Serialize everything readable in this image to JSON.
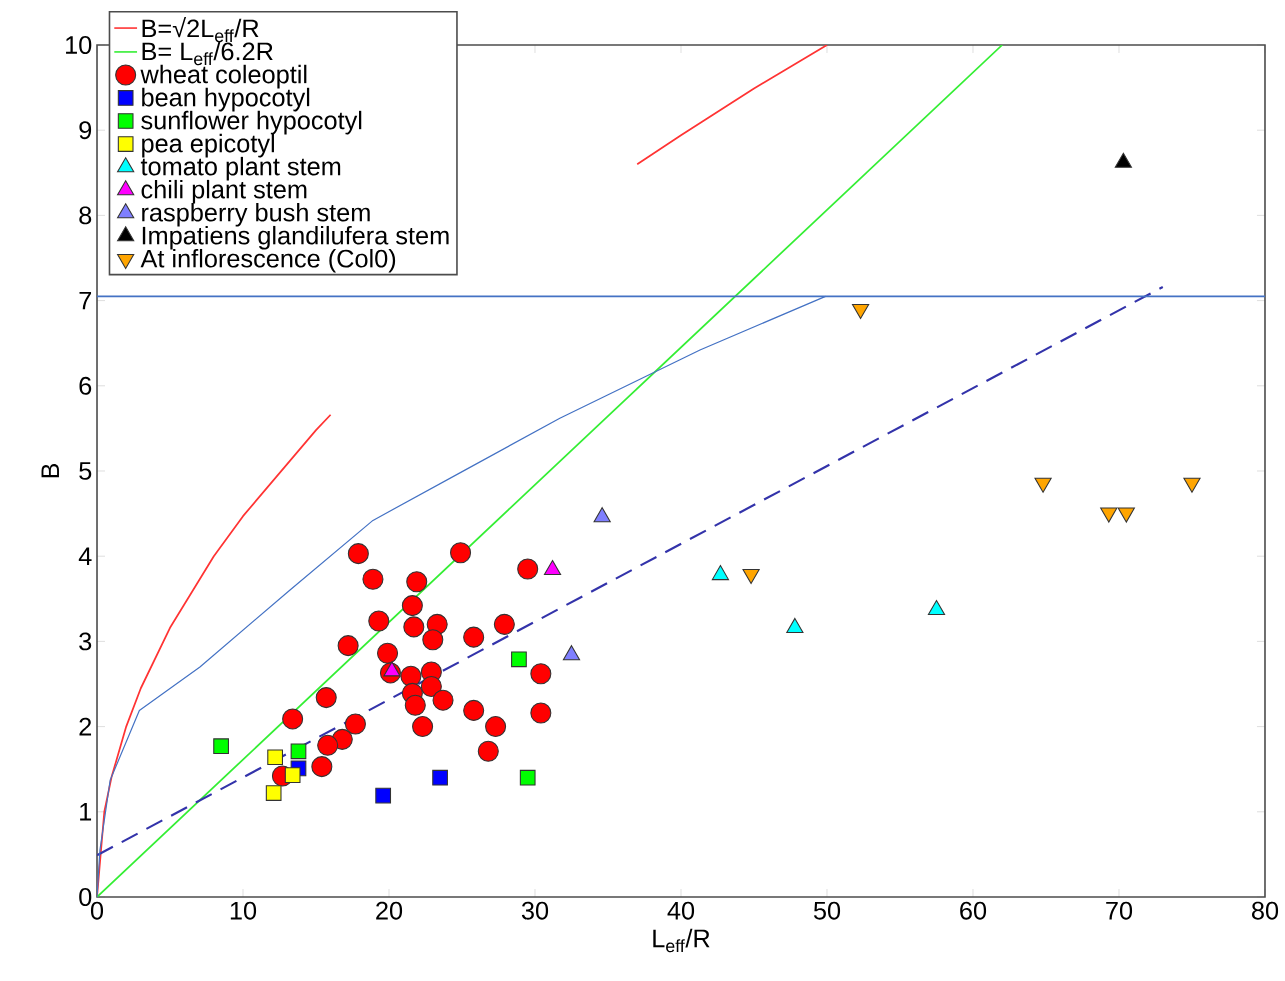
{
  "chart_data": {
    "type": "scatter",
    "xlabel": "L$_{eff}$/R",
    "ylabel": "B",
    "xlim": [
      0,
      80
    ],
    "ylim": [
      0,
      10
    ],
    "xticks": [
      0,
      10,
      20,
      30,
      40,
      50,
      60,
      70,
      80
    ],
    "yticks": [
      0,
      1,
      2,
      3,
      4,
      5,
      6,
      7,
      8,
      9,
      10
    ],
    "grid": false,
    "legend": "top left",
    "ref_lines": [
      {
        "axis": "y",
        "value": 7.05,
        "color": "#4472c4",
        "line_style": "solid"
      }
    ],
    "series": [
      {
        "name": "B=√2L$_{eff}$/R",
        "type": "line",
        "color": "#ff3333",
        "marker": "none",
        "line_style": "solid",
        "x": [
          0,
          0.5,
          1,
          2,
          3,
          5,
          8,
          10,
          15,
          16,
          20,
          25,
          30,
          35,
          37,
          40,
          45,
          50
        ],
        "values": [
          0,
          1,
          1.41,
          2,
          2.45,
          3.16,
          4,
          4.47,
          5.48,
          5.66,
          null,
          null,
          null,
          null,
          8.6,
          8.94,
          9.49,
          10
        ]
      },
      {
        "name": "B= L$_{eff}$/6.2R",
        "type": "line",
        "color": "#33ee33",
        "marker": "none",
        "line_style": "solid",
        "x": [
          0,
          62
        ],
        "values": [
          0,
          10
        ]
      },
      {
        "name": "wheat coleoptil",
        "color": "#ff0000",
        "marker": "circle",
        "x": [
          17.9,
          24.9,
          29.5,
          18.9,
          21.9,
          21.6,
          19.3,
          21.7,
          23.3,
          23.0,
          25.8,
          27.9,
          17.2,
          19.9,
          30.4,
          21.5,
          22.9,
          22.9,
          21.6,
          23.7,
          21.8,
          15.7,
          25.8,
          30.4,
          13.4,
          17.7,
          22.3,
          27.3,
          16.8,
          15.8,
          26.8,
          15.4,
          12.7,
          20.1
        ],
        "values": [
          4.03,
          4.04,
          3.85,
          3.73,
          3.7,
          3.42,
          3.24,
          3.17,
          3.2,
          3.02,
          3.05,
          3.2,
          2.95,
          2.86,
          2.62,
          2.59,
          2.64,
          2.47,
          2.39,
          2.31,
          2.25,
          2.34,
          2.19,
          2.16,
          2.09,
          2.03,
          2.0,
          2.0,
          1.85,
          1.78,
          1.71,
          1.53,
          1.42,
          2.63
        ]
      },
      {
        "name": "bean hypocotyl",
        "color": "#0000ff",
        "marker": "square",
        "x": [
          19.6,
          23.5,
          13.8
        ],
        "values": [
          1.19,
          1.4,
          1.51
        ]
      },
      {
        "name": "sunflower hypocotyl",
        "color": "#00ff00",
        "marker": "square",
        "x": [
          8.5,
          28.9,
          29.5,
          13.8
        ],
        "values": [
          1.77,
          2.79,
          1.4,
          1.71
        ]
      },
      {
        "name": "pea epicotyl",
        "color": "#ffff00",
        "marker": "square",
        "x": [
          12.2,
          13.4,
          12.1
        ],
        "values": [
          1.64,
          1.43,
          1.22
        ]
      },
      {
        "name": "tomato plant stem",
        "color": "#00ffff",
        "marker": "triangle",
        "x": [
          42.7,
          47.8,
          57.5
        ],
        "values": [
          3.78,
          3.16,
          3.37
        ]
      },
      {
        "name": "chili plant stem",
        "color": "#ff00ff",
        "marker": "triangle",
        "x": [
          31.2,
          20.2
        ],
        "values": [
          3.84,
          2.65
        ]
      },
      {
        "name": "raspberry bush stem",
        "color": "#7f7fff",
        "marker": "triangle",
        "x": [
          32.5,
          34.6
        ],
        "values": [
          2.84,
          4.46
        ]
      },
      {
        "name": "Impatiens glandilufera stem",
        "color": "#000000",
        "marker": "triangle",
        "x": [
          70.3
        ],
        "values": [
          8.62
        ]
      },
      {
        "name": "At inflorescence (Col0)",
        "color": "#ffa500",
        "marker": "triangle-down",
        "x": [
          52.3,
          44.8,
          64.8,
          69.3,
          70.5,
          75.0
        ],
        "values": [
          6.9,
          3.79,
          4.86,
          4.51,
          4.51,
          4.86
        ]
      },
      {
        "type": "line",
        "color": "#3333aa",
        "marker": "none",
        "line_style": "dashed",
        "x": [
          0,
          73
        ],
        "values": [
          0.49,
          7.16
        ]
      },
      {
        "type": "line",
        "color": "#4472c4",
        "marker": "none",
        "line_style": "solid",
        "x": [
          0,
          0.2,
          0.9,
          2.9,
          7.05,
          13.2,
          18.9,
          25.2,
          31.7,
          41.3,
          49.9
        ],
        "values": [
          0,
          0.55,
          1.37,
          2.19,
          2.7,
          3.6,
          4.42,
          5.01,
          5.62,
          6.42,
          7.05
        ]
      }
    ]
  }
}
